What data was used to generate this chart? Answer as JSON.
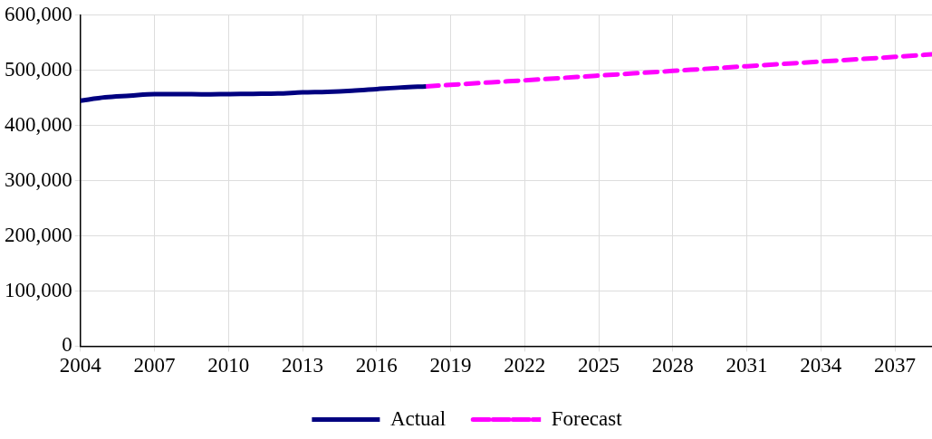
{
  "chart_data": {
    "type": "line",
    "xlim": [
      2004,
      2038.5
    ],
    "xticks": [
      2004,
      2007,
      2010,
      2013,
      2016,
      2019,
      2022,
      2025,
      2028,
      2031,
      2034,
      2037
    ],
    "ylim": [
      0,
      600000
    ],
    "yticks": [
      {
        "value": 0,
        "label": "0"
      },
      {
        "value": 100000,
        "label": "100,000"
      },
      {
        "value": 200000,
        "label": "200,000"
      },
      {
        "value": 300000,
        "label": "300,000"
      },
      {
        "value": 400000,
        "label": "400,000"
      },
      {
        "value": 500000,
        "label": "500,000"
      },
      {
        "value": 600000,
        "label": "600,000"
      }
    ],
    "grid": true,
    "legend": "bottom",
    "marker": "none",
    "series": [
      {
        "name": "Actual",
        "color": "#000080",
        "line_style": "solid",
        "x": [
          2004,
          2005,
          2006,
          2007,
          2008,
          2009,
          2010,
          2011,
          2012,
          2013,
          2014,
          2015,
          2016,
          2017,
          2018
        ],
        "values": [
          445000,
          451000,
          454000,
          457000,
          457000,
          456500,
          457000,
          457500,
          458000,
          460000,
          461000,
          463000,
          466000,
          469000,
          471000
        ]
      },
      {
        "name": "Forecast",
        "color": "#ff00ff",
        "line_style": "dashed",
        "x": [
          2018,
          2022,
          2025,
          2028,
          2031,
          2034,
          2037,
          2038.5
        ],
        "values": [
          471000,
          482000,
          490500,
          499000,
          507500,
          516000,
          524500,
          529000
        ]
      }
    ]
  }
}
